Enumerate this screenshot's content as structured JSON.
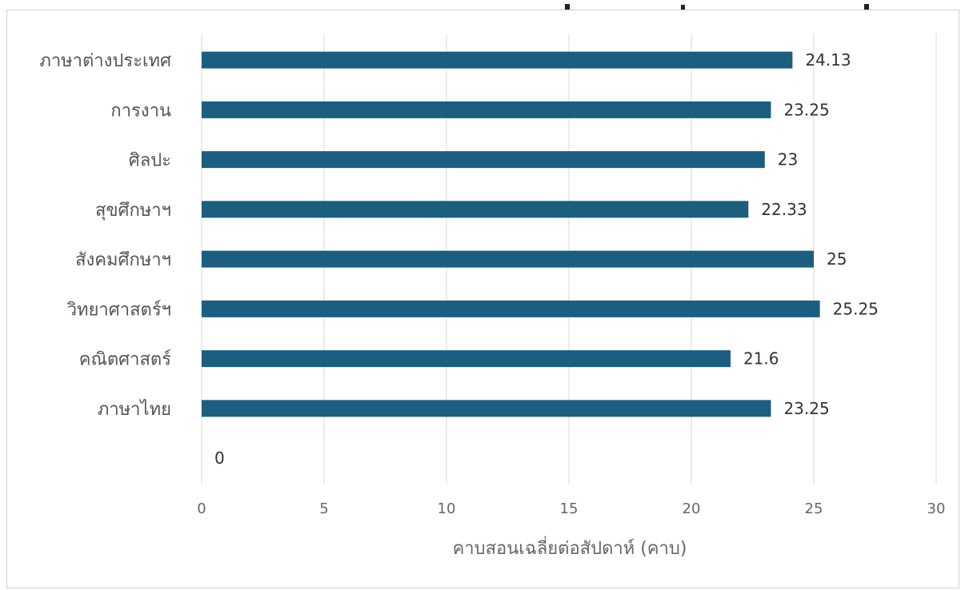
{
  "colors": {
    "bar": "#1b5e80",
    "grid": "#d9d9d9",
    "text": "#555555"
  },
  "chart_data": {
    "type": "bar",
    "orientation": "horizontal",
    "categories": [
      "ภาษาต่างประเทศ",
      "การงาน",
      "ศิลปะ",
      "สุขศึกษาฯ",
      "สังคมศึกษาฯ",
      "วิทยาศาสตร์ฯ",
      "คณิตศาสตร์",
      "ภาษาไทย",
      ""
    ],
    "values": [
      24.13,
      23.25,
      23,
      22.33,
      25,
      25.25,
      21.6,
      23.25,
      0
    ],
    "value_labels": [
      "24.13",
      "23.25",
      "23",
      "22.33",
      "25",
      "25.25",
      "21.6",
      "23.25",
      "0"
    ],
    "xlim": [
      0,
      30
    ],
    "xticks": [
      "0",
      "5",
      "10",
      "15",
      "20",
      "25",
      "30"
    ],
    "xlabel": "คาบสอนเฉลี่ยต่อสัปดาห์ (คาบ)",
    "grid": true,
    "legend": "none"
  }
}
